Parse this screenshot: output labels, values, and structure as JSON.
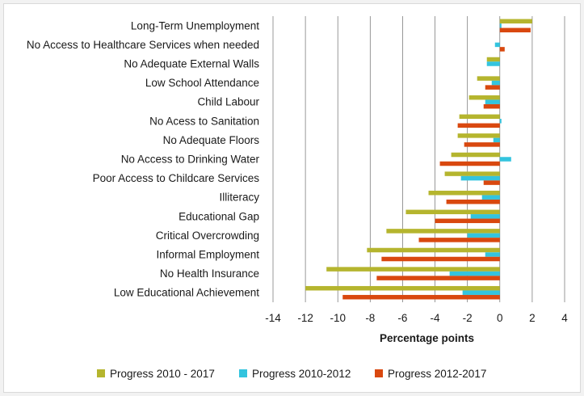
{
  "chart_data": {
    "type": "bar",
    "orientation": "horizontal",
    "categories": [
      "Long-Term Unemployment",
      "No Access to Healthcare Services when needed",
      "No Adequate External Walls",
      "Low School Attendance",
      "Child Labour",
      "No Acess to Sanitation",
      "No Adequate Floors",
      "No Access to Drinking Water",
      "Poor Access to Childcare Services",
      "Illiteracy",
      "Educational Gap",
      "Critical Overcrowding",
      "Informal Employment",
      "No Health Insurance",
      "Low Educational Achievement"
    ],
    "series": [
      {
        "name": "Progress 2010 - 2017",
        "color": "#b5b52e",
        "values": [
          2.0,
          0.0,
          -0.8,
          -1.4,
          -1.9,
          -2.5,
          -2.6,
          -3.0,
          -3.4,
          -4.4,
          -5.8,
          -7.0,
          -8.2,
          -10.7,
          -12.0
        ]
      },
      {
        "name": "Progress 2010-2012",
        "color": "#33c4de",
        "values": [
          0.1,
          -0.3,
          -0.8,
          -0.5,
          -0.9,
          0.1,
          -0.4,
          0.7,
          -2.4,
          -1.1,
          -1.8,
          -2.0,
          -0.9,
          -3.1,
          -2.3
        ]
      },
      {
        "name": "Progress 2012-2017",
        "color": "#d9480f",
        "values": [
          1.9,
          0.3,
          0.0,
          -0.9,
          -1.0,
          -2.6,
          -2.2,
          -3.7,
          -1.0,
          -3.3,
          -4.0,
          -5.0,
          -7.3,
          -7.6,
          -9.7
        ]
      }
    ],
    "xlabel": "Percentage points",
    "xlim": [
      -14,
      4
    ],
    "xticks": [
      -14,
      -12,
      -10,
      -8,
      -6,
      -4,
      -2,
      0,
      2,
      4
    ],
    "grid": true,
    "legend_position": "bottom"
  },
  "colors": {
    "grid": "#7f7f7f",
    "background": "#ffffff"
  }
}
